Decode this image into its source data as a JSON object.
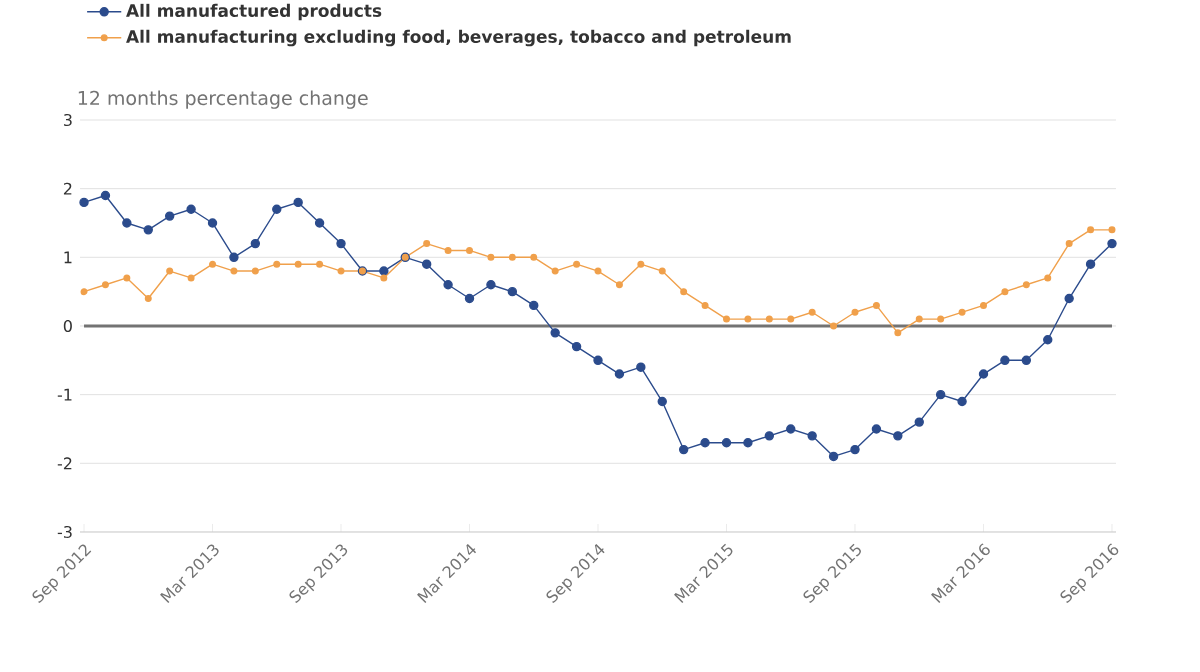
{
  "chart_data": {
    "type": "line",
    "ylabel": "12 months percentage change",
    "categories": [
      "Sep 2012",
      null,
      null,
      null,
      null,
      null,
      "Mar 2013",
      null,
      null,
      null,
      null,
      null,
      "Sep 2013",
      null,
      null,
      null,
      null,
      null,
      "Mar 2014",
      null,
      null,
      null,
      null,
      null,
      "Sep 2014",
      null,
      null,
      null,
      null,
      null,
      "Mar 2015",
      null,
      null,
      null,
      null,
      null,
      "Sep 2015",
      null,
      null,
      null,
      null,
      null,
      "Mar 2016",
      null,
      null,
      null,
      null,
      null,
      "Sep 2016"
    ],
    "series": [
      {
        "name": "All manufactured products",
        "color": "#2b4b8c",
        "values": [
          1.8,
          1.9,
          1.5,
          1.4,
          1.6,
          1.7,
          1.5,
          1.0,
          1.2,
          1.7,
          1.8,
          1.5,
          1.2,
          0.8,
          0.8,
          1.0,
          0.9,
          0.6,
          0.4,
          0.6,
          0.5,
          0.3,
          -0.1,
          -0.3,
          -0.5,
          -0.7,
          -0.6,
          -1.1,
          -1.8,
          -1.7,
          -1.7,
          -1.7,
          -1.6,
          -1.5,
          -1.6,
          -1.9,
          -1.8,
          -1.5,
          -1.6,
          -1.4,
          -1.0,
          -1.1,
          -0.7,
          -0.5,
          -0.5,
          -0.2,
          0.4,
          0.9,
          1.2
        ]
      },
      {
        "name": "All manufacturing excluding food, beverages, tobacco and petroleum",
        "color": "#f0a04b",
        "values": [
          0.5,
          0.6,
          0.7,
          0.4,
          0.8,
          0.7,
          0.9,
          0.8,
          0.8,
          0.9,
          0.9,
          0.9,
          0.8,
          0.8,
          0.7,
          1.0,
          1.2,
          1.1,
          1.1,
          1.0,
          1.0,
          1.0,
          0.8,
          0.9,
          0.8,
          0.6,
          0.9,
          0.8,
          0.5,
          0.3,
          0.1,
          0.1,
          0.1,
          0.1,
          0.2,
          0.0,
          0.2,
          0.3,
          -0.1,
          0.1,
          0.1,
          0.2,
          0.3,
          0.5,
          0.6,
          0.7,
          1.2,
          1.4,
          1.4
        ]
      }
    ],
    "ylim": [
      -3,
      3
    ],
    "yticks": [
      -3,
      -2,
      -1,
      0,
      1,
      2,
      3
    ],
    "grid": "y",
    "legend": "top left",
    "marker": "circle",
    "line_style": "solid",
    "ref_lines": [
      {
        "axis": "y",
        "value": 0,
        "color": "#737373"
      }
    ]
  }
}
